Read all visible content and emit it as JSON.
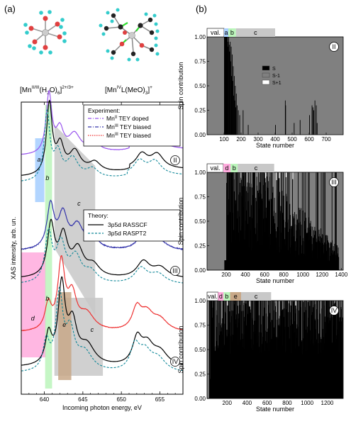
{
  "panel_a": {
    "label": "(a)",
    "formula_left": {
      "main": "[Mn",
      "sup1": "II/III",
      "mid": "(H",
      "sub": "2",
      "mid2": "O)",
      "sub2": "6",
      "close": "]",
      "sup2": "2+/3+"
    },
    "formula_right": {
      "main": "[Mn",
      "sup1": "IV",
      "mid": "L(MeO)",
      "sub": "3",
      "close": "]",
      "sup2": "+"
    }
  },
  "panel_b": {
    "label": "(b)"
  },
  "colors": {
    "doped": "#9955ee",
    "biased_ii": "#3333aa",
    "biased_iii": "#ee3333",
    "rasscf": "#000000",
    "raspt2": "#118899",
    "region_a": "#aad0ff",
    "region_b": "#bbf5bb",
    "region_c": "#c8c8c8",
    "region_d": "#ffaadd",
    "region_e": "#c8a888",
    "spin_S": "#000000",
    "spin_S_minus": "#808080",
    "spin_S_plus": "#ffffff"
  },
  "chart_data": [
    {
      "type": "line",
      "id": "xas",
      "xlabel": "Incoming photon energy, eV",
      "ylabel": "XAS intensity, arb. un.",
      "xlim": [
        637,
        658
      ],
      "xticks": [
        640,
        645,
        650,
        655
      ],
      "yticks": [],
      "legend_experiment": {
        "title": "Experiment:",
        "entries": [
          {
            "prefix": "Mn",
            "sup": "II",
            "rest": " TEY doped"
          },
          {
            "prefix": "Mn",
            "sup": "III",
            "rest": " TEY biased"
          },
          {
            "prefix": "Mn",
            "sup": "III",
            "rest": " TEY biased"
          }
        ]
      },
      "legend_theory": {
        "title": "Theory:",
        "entries": [
          "3p5d RASSCF",
          "3p5d RASPT2"
        ]
      },
      "regions": [
        {
          "label": "a",
          "x": [
            638.8,
            640.0
          ]
        },
        {
          "label": "b",
          "x": [
            640.1,
            641.0
          ]
        },
        {
          "label": "c",
          "x": [
            641.5,
            646.5
          ]
        },
        {
          "label": "d",
          "x": [
            637.0,
            640.2
          ]
        },
        {
          "label": "e",
          "x": [
            641.8,
            643.5
          ]
        }
      ],
      "region_labels": [
        "a",
        "b",
        "c",
        "b",
        "d",
        "e",
        "c"
      ],
      "subpanels": [
        "II",
        "III",
        "IV"
      ],
      "peaks": {
        "II": {
          "main": 640.6,
          "secondary": [
            642.0,
            644.0,
            646.5,
            652.5,
            654.5
          ]
        },
        "III": {
          "main": 640.8,
          "secondary": [
            642.3,
            644.3,
            653.0
          ]
        },
        "IV": {
          "main": 642.2,
          "secondary": [
            640.5,
            644.0,
            652.0,
            654.5
          ]
        }
      },
      "series": [
        {
          "name": "Mn II TEY doped",
          "subpanel": "II"
        },
        {
          "name": "Mn III TEY biased",
          "subpanel": "III"
        },
        {
          "name": "Mn III TEY biased",
          "subpanel": "IV"
        },
        {
          "name": "3p5d RASSCF"
        },
        {
          "name": "3p5d RASPT2"
        }
      ]
    },
    {
      "type": "bar",
      "id": "spin_II",
      "subpanel": "II",
      "xlabel": "State number",
      "ylabel": "Spin contribution",
      "xlim": [
        0,
        800
      ],
      "xticks": [
        100,
        200,
        300,
        400,
        500,
        600,
        700
      ],
      "ylim": [
        0,
        1
      ],
      "yticks": [
        "0.00",
        "0.25",
        "0.50",
        "0.75",
        "1.00"
      ],
      "legend": [
        "S",
        "S-1",
        "S+1"
      ],
      "background": "S-1",
      "regions": [
        {
          "label": "val.",
          "x": [
            0,
            100
          ]
        },
        {
          "label": "a",
          "x": [
            100,
            125
          ]
        },
        {
          "label": "b",
          "x": [
            125,
            170
          ]
        },
        {
          "label": "c",
          "x": [
            170,
            400
          ]
        }
      ],
      "bars_S": [
        [
          100,
          1.0
        ],
        [
          102,
          1.0
        ],
        [
          104,
          1.0
        ],
        [
          106,
          1.0
        ],
        [
          108,
          1.0
        ],
        [
          110,
          1.0
        ],
        [
          112,
          1.0
        ],
        [
          114,
          1.0
        ],
        [
          116,
          1.0
        ],
        [
          118,
          1.0
        ],
        [
          120,
          0.95
        ],
        [
          123,
          0.9
        ],
        [
          125,
          1.0
        ],
        [
          128,
          0.92
        ],
        [
          131,
          0.85
        ],
        [
          134,
          0.95
        ],
        [
          137,
          0.75
        ],
        [
          140,
          0.9
        ],
        [
          143,
          0.6
        ],
        [
          146,
          0.82
        ],
        [
          149,
          0.55
        ],
        [
          152,
          0.7
        ],
        [
          155,
          0.4
        ],
        [
          158,
          0.6
        ],
        [
          161,
          0.35
        ],
        [
          164,
          0.5
        ],
        [
          167,
          0.28
        ],
        [
          170,
          0.42
        ],
        [
          175,
          0.3
        ],
        [
          182,
          0.25
        ],
        [
          190,
          0.2
        ],
        [
          210,
          0.25
        ],
        [
          240,
          0.1
        ],
        [
          400,
          0.1
        ],
        [
          458,
          0.35
        ],
        [
          460,
          0.3
        ],
        [
          510,
          0.12
        ],
        [
          545,
          0.15
        ],
        [
          600,
          0.2
        ],
        [
          615,
          0.3
        ],
        [
          620,
          0.28
        ],
        [
          625,
          0.25
        ],
        [
          632,
          0.35
        ],
        [
          640,
          0.3
        ],
        [
          645,
          0.12
        ]
      ],
      "bars_S_plus": []
    },
    {
      "type": "bar",
      "id": "spin_III",
      "subpanel": "III",
      "xlabel": "State number",
      "ylabel": "Spin contribution",
      "xlim": [
        0,
        1420
      ],
      "xticks": [
        200,
        400,
        600,
        800,
        1000,
        1200,
        1400
      ],
      "ylim": [
        0,
        1
      ],
      "yticks": [
        "0.00",
        "0.25",
        "0.50",
        "0.75",
        "1.00"
      ],
      "background": "S-1",
      "regions": [
        {
          "label": "val.",
          "x": [
            0,
            170
          ]
        },
        {
          "label": "d",
          "x": [
            170,
            245
          ]
        },
        {
          "label": "b",
          "x": [
            245,
            320
          ]
        },
        {
          "label": "c",
          "x": [
            320,
            700
          ]
        }
      ],
      "bars_S_seed": 3,
      "bars_S_start": 180,
      "bars_S_end": 1370,
      "bars_S_plus": [
        [
          605,
          0.06
        ],
        [
          720,
          0.08
        ],
        [
          748,
          0.06
        ],
        [
          820,
          0.05
        ],
        [
          890,
          0.07
        ]
      ]
    },
    {
      "type": "bar",
      "id": "spin_IV",
      "subpanel": "IV",
      "xlabel": "State number",
      "ylabel": "Spin contribution",
      "xlim": [
        0,
        1360
      ],
      "xticks": [
        200,
        400,
        600,
        800,
        1000,
        1200
      ],
      "ylim": [
        0,
        1
      ],
      "yticks": [
        "0.00",
        "0.25",
        "0.50",
        "0.75",
        "1.00"
      ],
      "background": "S-1",
      "regions": [
        {
          "label": "val.",
          "x": [
            0,
            110
          ]
        },
        {
          "label": "d",
          "x": [
            110,
            165
          ]
        },
        {
          "label": "b",
          "x": [
            165,
            230
          ]
        },
        {
          "label": "e",
          "x": [
            230,
            340
          ]
        },
        {
          "label": "c",
          "x": [
            340,
            640
          ]
        }
      ],
      "bars_S_seed": 11,
      "bars_S_start": 20,
      "bars_S_end": 1350,
      "bars_S_plus": [
        [
          200,
          0.05
        ],
        [
          420,
          0.06
        ],
        [
          880,
          0.05
        ]
      ]
    }
  ]
}
